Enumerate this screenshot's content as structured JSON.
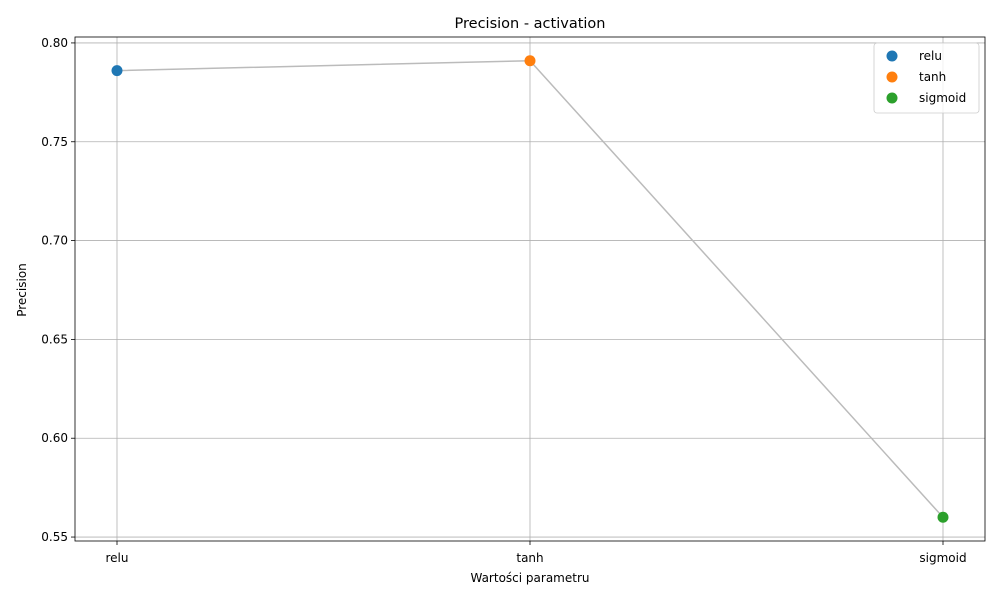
{
  "chart_data": {
    "type": "line",
    "title": "Precision - activation",
    "xlabel": "Wartości parametru",
    "ylabel": "Precision",
    "categories": [
      "relu",
      "tanh",
      "sigmoid"
    ],
    "values": [
      0.786,
      0.791,
      0.56
    ],
    "point_colors": [
      "#1f77b4",
      "#ff7f0e",
      "#2ca02c"
    ],
    "line_color": "#bbbbbb",
    "ylim": [
      0.548,
      0.803
    ],
    "yticks": [
      "0.55",
      "0.60",
      "0.65",
      "0.70",
      "0.75",
      "0.80"
    ],
    "grid": true,
    "legend": {
      "placement": "top-right",
      "entries": [
        "relu",
        "tanh",
        "sigmoid"
      ]
    }
  }
}
